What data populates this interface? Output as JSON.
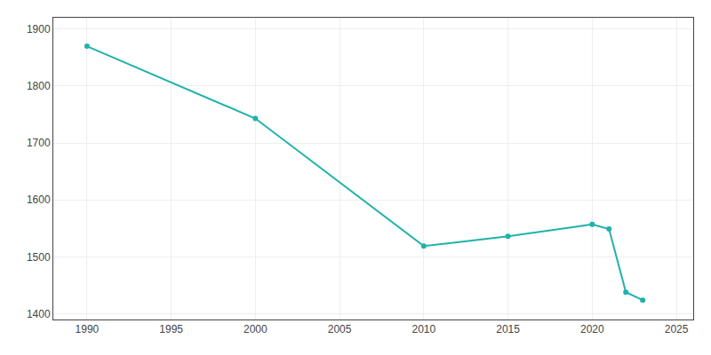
{
  "chart_data": {
    "type": "line",
    "x": [
      1990,
      2000,
      2010,
      2015,
      2020,
      2021,
      2022,
      2023
    ],
    "values": [
      1870,
      1743,
      1519,
      1536,
      1557,
      1549,
      1438,
      1424
    ],
    "color": "#20b2aa",
    "marker": "circle",
    "line_style": "solid",
    "xlim": [
      1988,
      2026
    ],
    "ylim": [
      1390,
      1920
    ],
    "xticks": [
      1990,
      1995,
      2000,
      2005,
      2010,
      2015,
      2020,
      2025
    ],
    "yticks": [
      1400,
      1500,
      1600,
      1700,
      1800,
      1900
    ],
    "grid": true
  }
}
